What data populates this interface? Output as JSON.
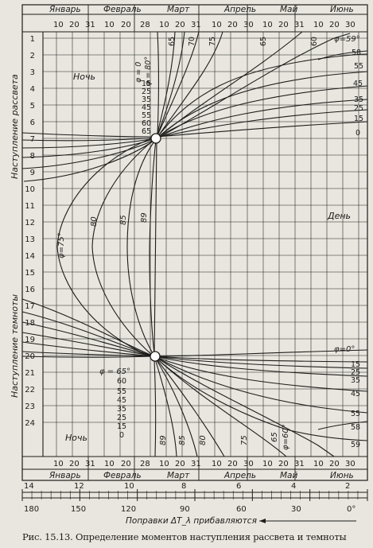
{
  "months_top": [
    "Январь",
    "Февраль",
    "Март",
    "Апрель",
    "Май",
    "Июнь"
  ],
  "days_top": [
    "10",
    "20",
    "31",
    "10",
    "20",
    "28",
    "10",
    "20",
    "31",
    "10",
    "20",
    "30",
    "10",
    "20",
    "31",
    "10",
    "20",
    "30"
  ],
  "months_bottom": [
    "Январь",
    "Февраль",
    "Март",
    "Апрель",
    "Май",
    "Июнь"
  ],
  "days_bottom": [
    "10",
    "20",
    "31",
    "10",
    "20",
    "28",
    "10",
    "20",
    "31",
    "10",
    "20",
    "30",
    "10",
    "20",
    "31",
    "10",
    "20",
    "30"
  ],
  "hours": [
    "1",
    "2",
    "3",
    "4",
    "5",
    "6",
    "7",
    "8",
    "9",
    "10",
    "11",
    "12",
    "13",
    "14",
    "15",
    "16",
    "17",
    "18",
    "19",
    "20",
    "21",
    "22",
    "23",
    "24"
  ],
  "axis_label_dawn": "Наступление рассвета",
  "axis_label_dusk": "Наступление темноты",
  "label_night_top": "Ночь",
  "label_night_bottom": "Ночь",
  "label_day": "День",
  "phi_top_left": "φ = 0",
  "phi_top_right": "φ = 80°",
  "phi_top_values": [
    "15",
    "25",
    "35",
    "45",
    "55",
    "60",
    "65"
  ],
  "phi_upper_right_title": "φ=59°",
  "phi_upper_right_values": [
    "58",
    "55",
    "45",
    "35",
    "25",
    "15",
    "0"
  ],
  "phi_upper_curve_labels": [
    "65",
    "70",
    "75",
    "65",
    "60"
  ],
  "phi_75_label": "φ=75°",
  "phi_mid_labels": [
    "80",
    "85",
    "89"
  ],
  "phi_lower_left_title": "φ = 65°",
  "phi_lower_left_values": [
    "60",
    "55",
    "45",
    "35",
    "25",
    "15",
    "0"
  ],
  "phi_lower_right_title": "φ=0°",
  "phi_lower_right_values": [
    "15",
    "25",
    "35",
    "45",
    "55",
    "58",
    "59"
  ],
  "phi_bottom_curve_labels": [
    "89",
    "85",
    "80",
    "75",
    "65",
    "φ=60°"
  ],
  "scale_top_values": [
    "14",
    "12",
    "10",
    "8",
    "6",
    "4",
    "2"
  ],
  "scale_bottom_values": [
    "180",
    "150",
    "120",
    "90",
    "60",
    "30",
    "0°"
  ],
  "scale_note": "Поправки ΔT_λ прибавляются",
  "caption": "Рис. 15.13. Определение моментов наступления рассвета и темноты"
}
